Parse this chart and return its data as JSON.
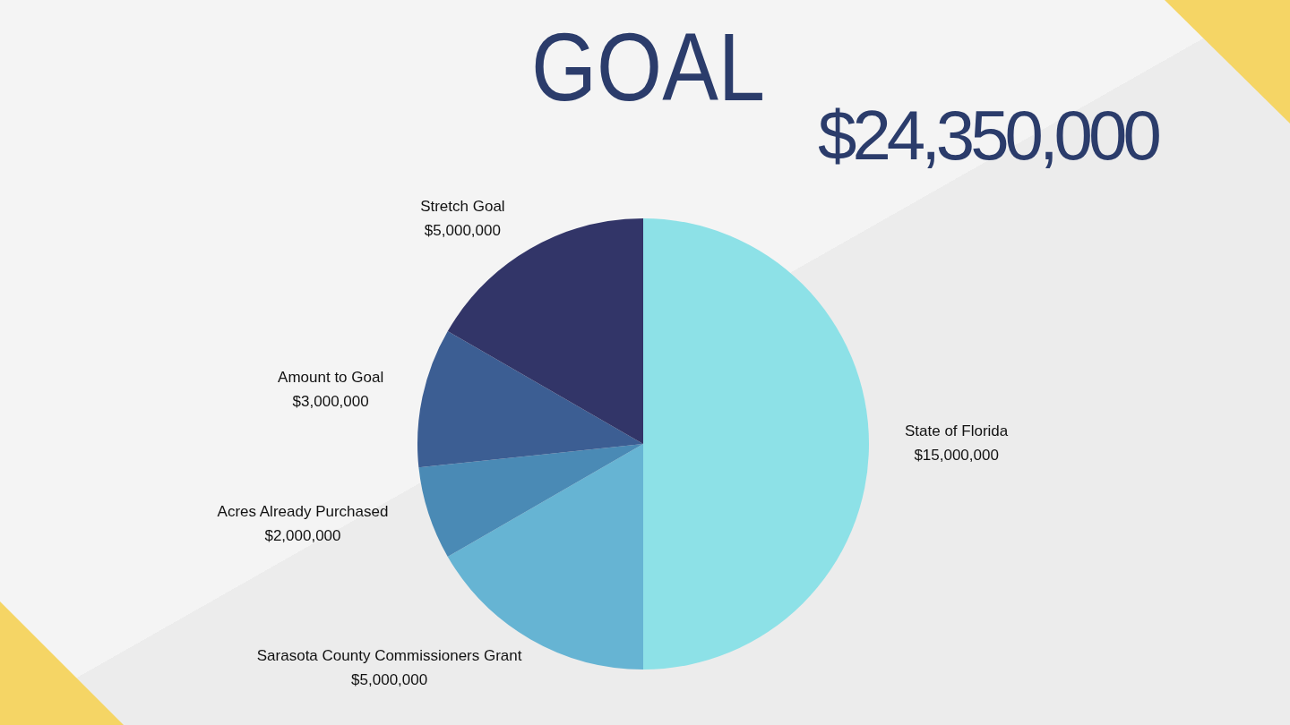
{
  "chart_data": {
    "type": "pie",
    "title": "GOAL",
    "subtitle": "$24,350,000",
    "categories": [
      "State of Florida",
      "Sarasota County Commissioners Grant",
      "Acres Already Purchased",
      "Amount to Goal",
      "Stretch Goal"
    ],
    "values": [
      15000000,
      5000000,
      2000000,
      3000000,
      5000000
    ],
    "colors": [
      "#8de1e7",
      "#66b4d3",
      "#4a8ab5",
      "#3c5e93",
      "#323568"
    ],
    "value_labels": [
      "$15,000,000",
      "$5,000,000",
      "$2,000,000",
      "$3,000,000",
      "$5,000,000"
    ]
  }
}
